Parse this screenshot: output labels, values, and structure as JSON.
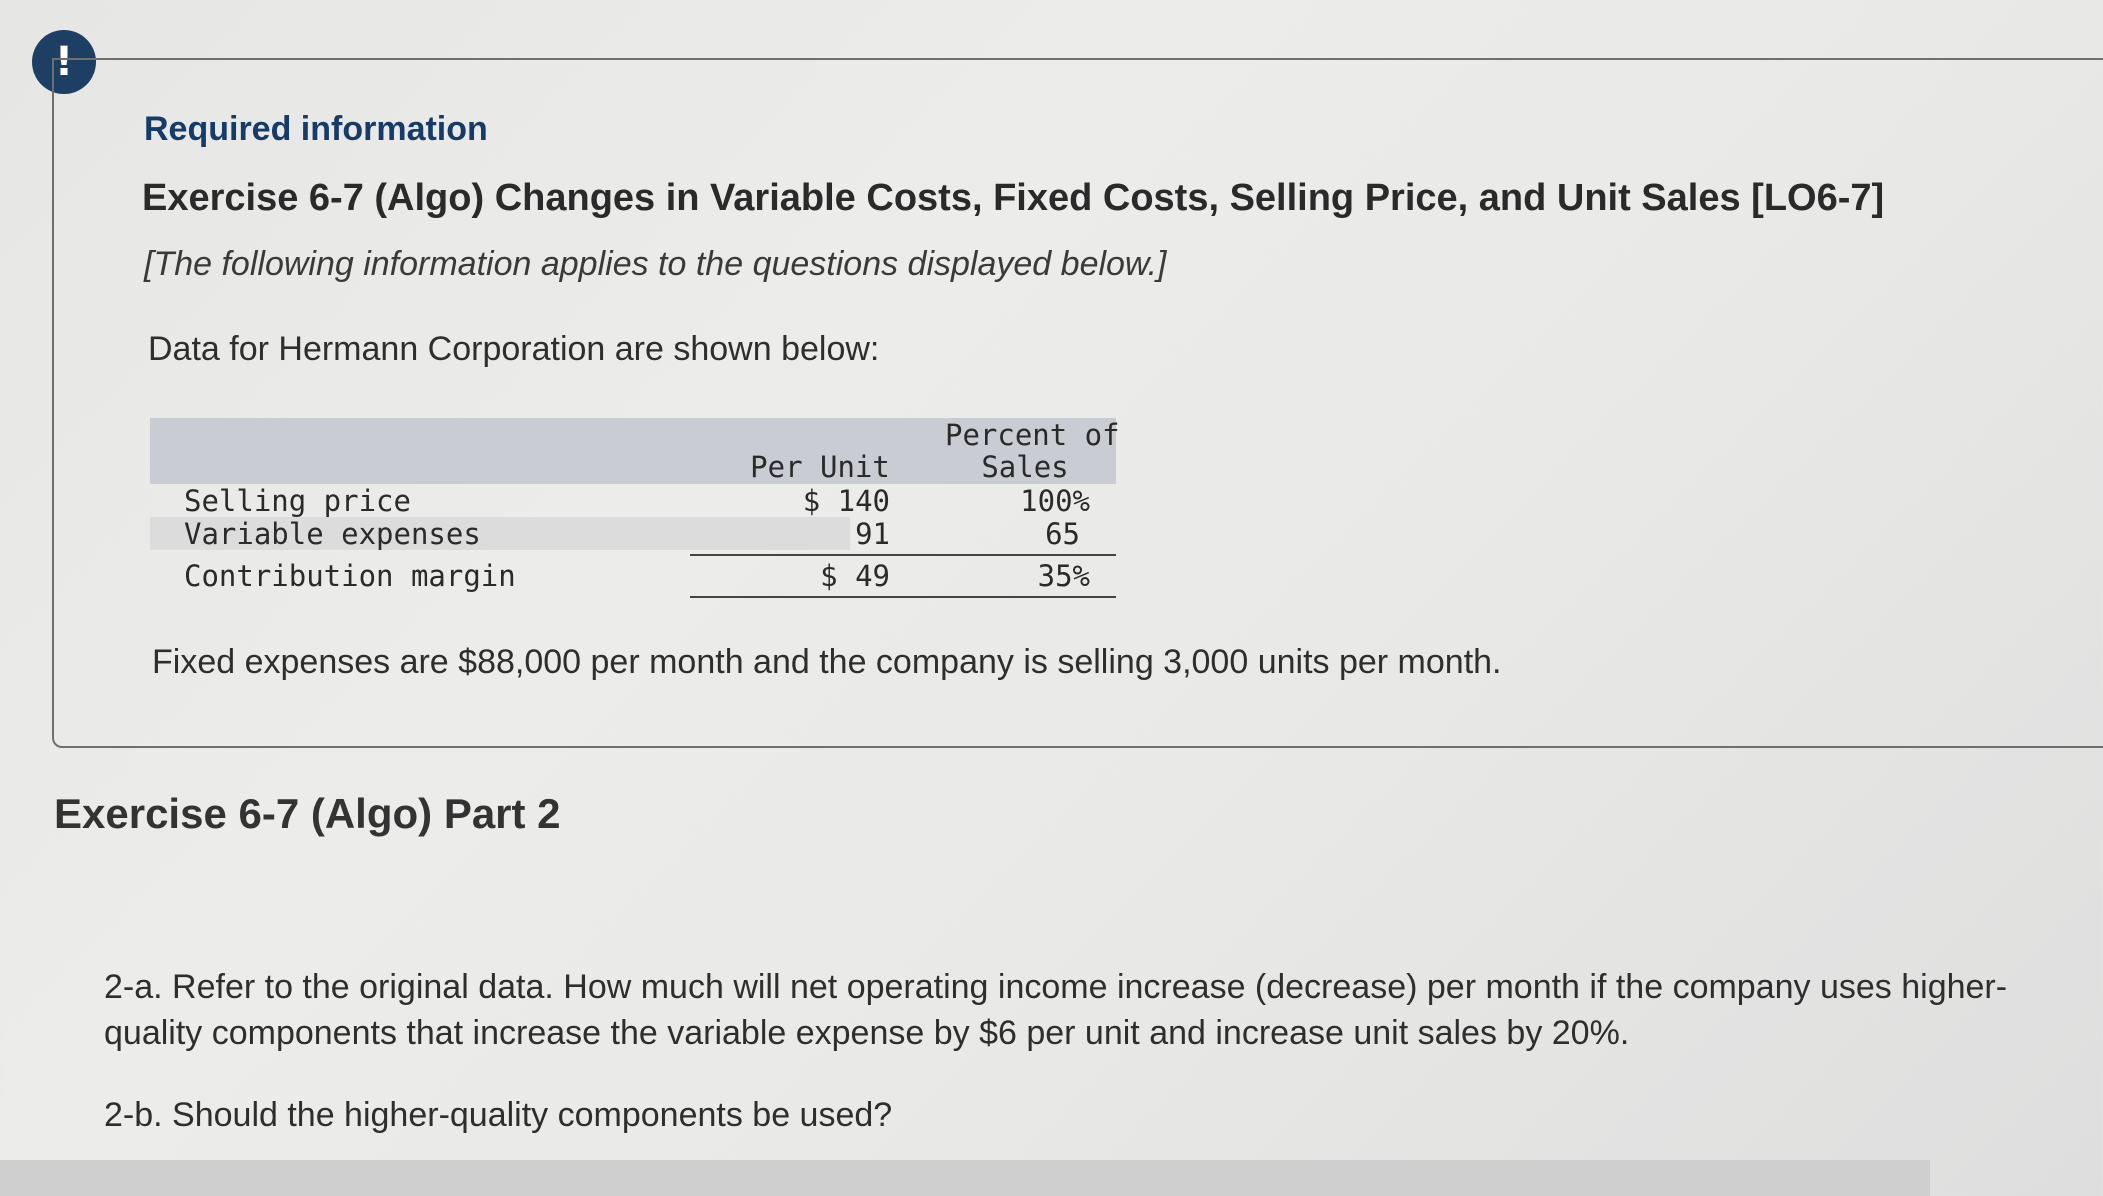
{
  "alert_icon": {
    "glyph": "!",
    "color": "#1c3f63"
  },
  "required_info": "Required information",
  "exercise_title": "Exercise 6-7 (Algo) Changes in Variable Costs, Fixed Costs, Selling Price, and Unit Sales [LO6-7]",
  "subnote": "[The following information applies to the questions displayed below.]",
  "data_intro": "Data for Hermann Corporation are shown below:",
  "table": {
    "header_per_unit": "Per Unit",
    "header_percent_line1": "Percent of",
    "header_percent_line2": "Sales",
    "rows": [
      {
        "label": "Selling price",
        "per_unit": "$ 140",
        "percent": "100%"
      },
      {
        "label": "Variable expenses",
        "per_unit": "91",
        "percent": "65"
      },
      {
        "label": "Contribution margin",
        "per_unit": "$ 49",
        "percent": "35%"
      }
    ]
  },
  "fixed_expenses_text": "Fixed expenses are $88,000 per month and the company is selling 3,000 units per month.",
  "part_heading": "Exercise 6-7 (Algo) Part 2",
  "question_2a": "2-a. Refer to the original data. How much will net operating income increase (decrease) per month if the company uses higher-quality components that increase the variable expense by $6 per unit and increase unit sales by 20%.",
  "question_2b": "2-b. Should the higher-quality components be used?"
}
